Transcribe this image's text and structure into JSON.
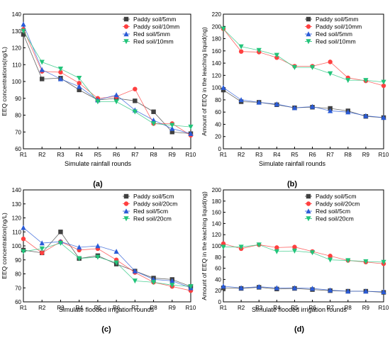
{
  "palette": {
    "paddy_low": "#404040",
    "paddy_high": "#ff4040",
    "red_low": "#2a5bd7",
    "red_high": "#22c47a",
    "axis": "#000000"
  },
  "chart_data": [
    {
      "type": "line",
      "panel_label": "(a)",
      "xlabel": "Simulate rainfall rounds",
      "ylabel": "EEQ concentrations(ng/L)",
      "categories": [
        "R1",
        "R2",
        "R3",
        "R4",
        "R5",
        "R6",
        "R7",
        "R8",
        "R9",
        "R10"
      ],
      "ylim": [
        60,
        140
      ],
      "yticks": [
        60,
        70,
        80,
        90,
        100,
        110,
        120,
        130,
        140
      ],
      "legend_position": "top-right",
      "series": [
        {
          "name": "Paddy soil/5mm",
          "marker": "square",
          "color": "#404040",
          "values": [
            128,
            101.5,
            102,
            95,
            89,
            90,
            88.5,
            82,
            70,
            69
          ]
        },
        {
          "name": "Paddy soil/10mm",
          "marker": "circle",
          "color": "#ff4040",
          "values": [
            131,
            106,
            105.5,
            99,
            90,
            91,
            95.5,
            75,
            75,
            68
          ]
        },
        {
          "name": "Red soil/5mm",
          "marker": "triangle-up",
          "color": "#2a5bd7",
          "values": [
            134,
            107,
            101.5,
            97,
            89,
            92,
            83,
            77,
            72,
            69
          ]
        },
        {
          "name": "Red soil/10mm",
          "marker": "triangle-down",
          "color": "#22c47a",
          "values": [
            130,
            111.5,
            107.5,
            102,
            88,
            88,
            82,
            75,
            74,
            73
          ]
        }
      ]
    },
    {
      "type": "line",
      "panel_label": "(b)",
      "xlabel": "Simulate rainfall rounds",
      "ylabel": "Amount of EEQ in the leaching liquid(ng)",
      "categories": [
        "R1",
        "R2",
        "R3",
        "R4",
        "R5",
        "R6",
        "R7",
        "R8",
        "R9",
        "R10"
      ],
      "ylim": [
        0,
        220
      ],
      "yticks": [
        0,
        20,
        40,
        60,
        80,
        100,
        120,
        140,
        160,
        180,
        200,
        220
      ],
      "legend_position": "top-right",
      "series": [
        {
          "name": "Paddy soil/5mm",
          "marker": "square",
          "color": "#404040",
          "values": [
            96,
            77,
            76,
            72,
            67,
            68,
            66,
            62,
            53,
            51
          ]
        },
        {
          "name": "Paddy soil/10mm",
          "marker": "circle",
          "color": "#ff4040",
          "values": [
            196,
            159,
            158,
            149,
            135,
            135,
            142,
            116,
            111,
            103
          ]
        },
        {
          "name": "Red soil/5mm",
          "marker": "triangle-up",
          "color": "#2a5bd7",
          "values": [
            100,
            80,
            76,
            73,
            67,
            69,
            62,
            60,
            54,
            51
          ]
        },
        {
          "name": "Red soil/10mm",
          "marker": "triangle-down",
          "color": "#22c47a",
          "values": [
            196,
            167,
            161,
            153,
            133,
            133,
            123,
            112,
            112,
            109
          ]
        }
      ]
    },
    {
      "type": "line",
      "panel_label": "(c)",
      "xlabel": "Simulate flooded irrigation rounds",
      "ylabel": "EEQ concentration(ng/L)",
      "categories": [
        "R1",
        "R2",
        "R3",
        "R4",
        "R5",
        "R6",
        "R7",
        "R8",
        "R9",
        "R10"
      ],
      "ylim": [
        60,
        140
      ],
      "yticks": [
        60,
        70,
        80,
        90,
        100,
        110,
        120,
        130,
        140
      ],
      "legend_position": "top-right",
      "series": [
        {
          "name": "Paddy soil/5cm",
          "marker": "square",
          "color": "#404040",
          "values": [
            97,
            95,
            110,
            91,
            93,
            87,
            82,
            77,
            76,
            71
          ]
        },
        {
          "name": "Paddy soil/20cm",
          "marker": "circle",
          "color": "#ff4040",
          "values": [
            105,
            95,
            103,
            97,
            98,
            90,
            81,
            74,
            71,
            68
          ]
        },
        {
          "name": "Red soil/5cm",
          "marker": "triangle-up",
          "color": "#2a5bd7",
          "values": [
            113,
            102,
            103,
            99,
            100,
            96,
            82,
            76,
            75,
            70
          ]
        },
        {
          "name": "Red soil/20cm",
          "marker": "triangle-down",
          "color": "#22c47a",
          "values": [
            96,
            98,
            102,
            91,
            92,
            88,
            75,
            74,
            72,
            71
          ]
        }
      ]
    },
    {
      "type": "line",
      "panel_label": "(d)",
      "xlabel": "Simulate flooded irrigation rounds",
      "ylabel": "Amount of EEQ in the leaching liquid(ng)",
      "categories": [
        "R1",
        "R2",
        "R3",
        "R4",
        "R5",
        "R6",
        "R7",
        "R8",
        "R9",
        "R10"
      ],
      "ylim": [
        0,
        200
      ],
      "yticks": [
        0,
        20,
        40,
        60,
        80,
        100,
        120,
        140,
        160,
        180,
        200
      ],
      "legend_position": "top-right",
      "series": [
        {
          "name": "Paddy soil/5cm",
          "marker": "square",
          "color": "#404040",
          "values": [
            25,
            24,
            26,
            23,
            24,
            22,
            20,
            19,
            19,
            17
          ]
        },
        {
          "name": "Paddy soil/20cm",
          "marker": "circle",
          "color": "#ff4040",
          "values": [
            104,
            95,
            102,
            97,
            98,
            90,
            82,
            74,
            71,
            68
          ]
        },
        {
          "name": "Red soil/5cm",
          "marker": "triangle-up",
          "color": "#2a5bd7",
          "values": [
            28,
            25,
            27,
            25,
            25,
            24,
            21,
            19,
            19,
            18
          ]
        },
        {
          "name": "Red soil/20cm",
          "marker": "triangle-down",
          "color": "#22c47a",
          "values": [
            98,
            98,
            102,
            90,
            91,
            88,
            75,
            74,
            72,
            71
          ]
        }
      ]
    }
  ]
}
